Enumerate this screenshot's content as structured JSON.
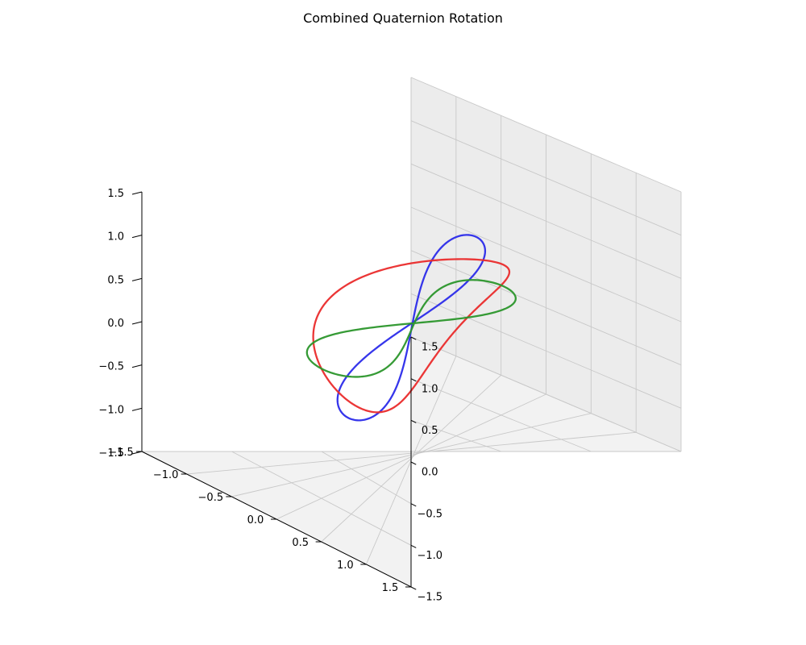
{
  "chart_data": {
    "type": "line3d",
    "title": "Combined Quaternion Rotation",
    "xlabel": "",
    "ylabel": "",
    "zlabel": "",
    "xlim": [
      -1.5,
      1.5
    ],
    "ylim": [
      -1.5,
      1.5
    ],
    "zlim": [
      -1.5,
      1.5
    ],
    "grid": true,
    "view": {
      "elev_deg": 30,
      "azim_deg": 45
    },
    "x_ticks": [
      "−1.5",
      "−1.0",
      "−0.5",
      "0.0",
      "0.5",
      "1.0",
      "1.5"
    ],
    "y_ticks": [
      "−1.5",
      "−1.0",
      "−0.5",
      "0.0",
      "0.5",
      "1.0",
      "1.5"
    ],
    "z_ticks": [
      "−1.5",
      "−1.0",
      "−0.5",
      "0.0",
      "0.5",
      "1.0",
      "1.5"
    ],
    "tick_values": [
      -1.5,
      -1.0,
      -0.5,
      0.0,
      0.5,
      1.0,
      1.5
    ],
    "series": [
      {
        "color": "#2b2bea",
        "description": "unit circle rotated about the x-axis by 45 degrees",
        "circle": {
          "center": [
            0,
            0,
            0
          ],
          "radius": 1,
          "u": [
            1,
            0,
            0
          ],
          "v": [
            0,
            0.7071,
            0.7071
          ]
        }
      },
      {
        "color": "#ea2b2b",
        "description": "unit circle rotated about the y-axis by 45 degrees",
        "circle": {
          "center": [
            0,
            0,
            0
          ],
          "radius": 1,
          "u": [
            0.7071,
            0,
            -0.7071
          ],
          "v": [
            0,
            1,
            0
          ]
        }
      },
      {
        "color": "#2b962b",
        "description": "unit circle rotated about the z-axis by 45 degrees",
        "circle": {
          "center": [
            0,
            0,
            0
          ],
          "radius": 1,
          "u": [
            0.7071,
            0.7071,
            0
          ],
          "v": [
            -0.7071,
            0.7071,
            0
          ]
        }
      }
    ]
  }
}
